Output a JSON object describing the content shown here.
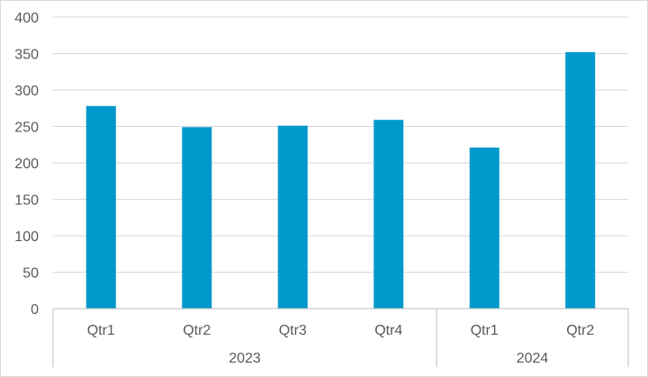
{
  "chart_data": {
    "type": "bar",
    "title": "",
    "xlabel": "",
    "ylabel": "",
    "ylim": [
      0,
      400
    ],
    "yticks": [
      0,
      50,
      100,
      150,
      200,
      250,
      300,
      350,
      400
    ],
    "grid": true,
    "legend": "none",
    "colors": {
      "bar": "#0099CC",
      "grid": "#d9d9d9",
      "axis": "#bfbfbf",
      "text": "#595959"
    },
    "groups": [
      {
        "label": "2023",
        "categories": [
          "Qtr1",
          "Qtr2",
          "Qtr3",
          "Qtr4"
        ]
      },
      {
        "label": "2024",
        "categories": [
          "Qtr1",
          "Qtr2"
        ]
      }
    ],
    "values": [
      278,
      249,
      251,
      259,
      221,
      352
    ]
  }
}
